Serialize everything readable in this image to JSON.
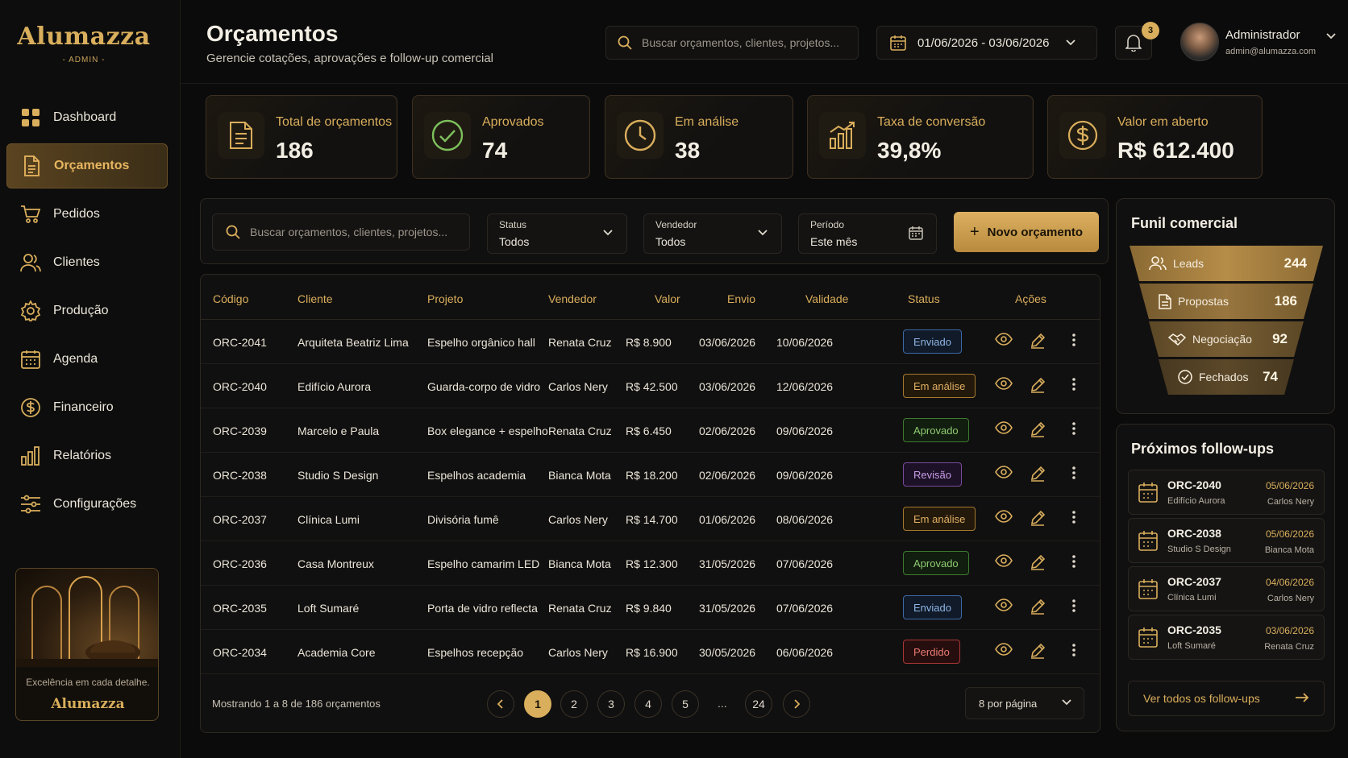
{
  "brand": {
    "name": "Alumazza",
    "sub": "- ADMIN -"
  },
  "nav": [
    {
      "label": "Dashboard",
      "icon": "grid-icon"
    },
    {
      "label": "Orçamentos",
      "icon": "document-icon",
      "active": true
    },
    {
      "label": "Pedidos",
      "icon": "cart-icon"
    },
    {
      "label": "Clientes",
      "icon": "users-icon"
    },
    {
      "label": "Produção",
      "icon": "gear-icon"
    },
    {
      "label": "Agenda",
      "icon": "calendar-icon"
    },
    {
      "label": "Financeiro",
      "icon": "dollar-icon"
    },
    {
      "label": "Relatórios",
      "icon": "bar-chart-icon"
    },
    {
      "label": "Configurações",
      "icon": "sliders-icon"
    }
  ],
  "promo": {
    "text": "Excelência em cada detalhe.",
    "brand": "Alumazza"
  },
  "header": {
    "title": "Orçamentos",
    "subtitle": "Gerencie cotações, aprovações e follow-up comercial",
    "search_placeholder": "Buscar orçamentos, clientes, projetos...",
    "date_range": "01/06/2026 - 03/06/2026",
    "notifications": "3",
    "user_name": "Administrador",
    "user_email": "admin@alumazza.com"
  },
  "stats": [
    {
      "label": "Total de orçamentos",
      "value": "186"
    },
    {
      "label": "Aprovados",
      "value": "74"
    },
    {
      "label": "Em análise",
      "value": "38"
    },
    {
      "label": "Taxa de conversão",
      "value": "39,8%"
    },
    {
      "label": "Valor em aberto",
      "value": "R$ 612.400"
    }
  ],
  "filters": {
    "search_placeholder": "Buscar orçamentos, clientes, projetos...",
    "status_label": "Status",
    "status_value": "Todos",
    "seller_label": "Vendedor",
    "seller_value": "Todos",
    "period_label": "Período",
    "period_value": "Este mês",
    "new_button": "Novo orçamento"
  },
  "table": {
    "headers": [
      "Código",
      "Cliente",
      "Projeto",
      "Vendedor",
      "Valor",
      "Envio",
      "Validade",
      "Status",
      "Ações"
    ],
    "rows": [
      [
        "ORC-2041",
        "Arquiteta Beatriz Lima",
        "Espelho orgânico hall",
        "Renata Cruz",
        "R$ 8.900",
        "03/06/2026",
        "10/06/2026",
        "Enviado"
      ],
      [
        "ORC-2040",
        "Edifício Aurora",
        "Guarda-corpo de vidro",
        "Carlos Nery",
        "R$ 42.500",
        "03/06/2026",
        "12/06/2026",
        "Em análise"
      ],
      [
        "ORC-2039",
        "Marcelo e Paula",
        "Box elegance + espelho",
        "Renata Cruz",
        "R$ 6.450",
        "02/06/2026",
        "09/06/2026",
        "Aprovado"
      ],
      [
        "ORC-2038",
        "Studio S Design",
        "Espelhos academia",
        "Bianca Mota",
        "R$ 18.200",
        "02/06/2026",
        "09/06/2026",
        "Revisão"
      ],
      [
        "ORC-2037",
        "Clínica Lumi",
        "Divisória fumê",
        "Carlos Nery",
        "R$ 14.700",
        "01/06/2026",
        "08/06/2026",
        "Em análise"
      ],
      [
        "ORC-2036",
        "Casa Montreux",
        "Espelho camarim LED",
        "Bianca Mota",
        "R$ 12.300",
        "31/05/2026",
        "07/06/2026",
        "Aprovado"
      ],
      [
        "ORC-2035",
        "Loft Sumaré",
        "Porta de vidro reflecta",
        "Renata Cruz",
        "R$ 9.840",
        "31/05/2026",
        "07/06/2026",
        "Enviado"
      ],
      [
        "ORC-2034",
        "Academia Core",
        "Espelhos recepção",
        "Carlos Nery",
        "R$ 16.900",
        "30/05/2026",
        "06/06/2026",
        "Perdido"
      ]
    ],
    "footer": "Mostrando 1 a 8 de 186 orçamentos",
    "pages": [
      "1",
      "2",
      "3",
      "4",
      "5"
    ],
    "ellipsis": "...",
    "last_page": "24",
    "per_page": "8 por página"
  },
  "funnel": {
    "title": "Funil comercial",
    "stages": [
      {
        "label": "Leads",
        "value": "244"
      },
      {
        "label": "Propostas",
        "value": "186"
      },
      {
        "label": "Negociação",
        "value": "92"
      },
      {
        "label": "Fechados",
        "value": "74"
      }
    ]
  },
  "followups": {
    "title": "Próximos follow-ups",
    "items": [
      {
        "code": "ORC-2040",
        "client": "Edifício Aurora",
        "date": "05/06/2026",
        "seller": "Carlos Nery"
      },
      {
        "code": "ORC-2038",
        "client": "Studio S Design",
        "date": "05/06/2026",
        "seller": "Bianca Mota"
      },
      {
        "code": "ORC-2037",
        "client": "Clínica Lumi",
        "date": "04/06/2026",
        "seller": "Carlos Nery"
      },
      {
        "code": "ORC-2035",
        "client": "Loft Sumaré",
        "date": "03/06/2026",
        "seller": "Renata Cruz"
      }
    ],
    "see_all": "Ver todos os follow-ups"
  },
  "colors": {
    "accent": "#d9ae5c",
    "background": "#0b0b0b",
    "enviado": "#8fb4e6",
    "analise": "#e2b064",
    "aprovado": "#8ecb72",
    "revisao": "#c89ae6",
    "perdido": "#ea7a72"
  }
}
